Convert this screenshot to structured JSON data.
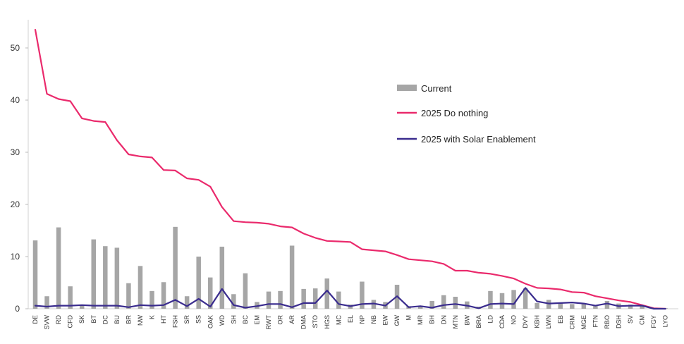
{
  "chart_data": {
    "type": "bar",
    "categories": [
      "DE",
      "SVW",
      "RD",
      "CFD",
      "SK",
      "BT",
      "DC",
      "BU",
      "BR",
      "NW",
      "K",
      "HT",
      "FSH",
      "SR",
      "SS",
      "OAK",
      "WD",
      "SH",
      "BC",
      "EM",
      "RWT",
      "OR",
      "AR",
      "DMA",
      "STO",
      "HGS",
      "MC",
      "EL",
      "NP",
      "NB",
      "EW",
      "GW",
      "M",
      "MR",
      "BH",
      "DN",
      "MTN",
      "BW",
      "BRA",
      "LD",
      "CDA",
      "NO",
      "DVY",
      "KBH",
      "LWN",
      "EB",
      "CRM",
      "MGE",
      "FTN",
      "RBO",
      "DSH",
      "SV",
      "CM",
      "FGY",
      "LYO"
    ],
    "series": [
      {
        "name": "Current",
        "kind": "bar",
        "color": "#a6a6a6",
        "values": [
          13.1,
          2.4,
          15.6,
          4.3,
          0.8,
          13.3,
          12.0,
          11.7,
          4.9,
          8.2,
          3.4,
          5.1,
          15.7,
          2.4,
          10.0,
          6.0,
          11.9,
          2.8,
          6.8,
          1.3,
          3.3,
          3.4,
          12.1,
          3.8,
          3.9,
          5.8,
          3.3,
          0.8,
          5.2,
          1.7,
          1.3,
          4.6,
          0.5,
          0.6,
          1.5,
          2.6,
          2.3,
          1.4,
          0.4,
          3.4,
          3.0,
          3.6,
          3.9,
          1.1,
          1.7,
          1.2,
          0.9,
          0.9,
          0.7,
          1.5,
          1.0,
          0.8,
          0.7,
          0.2,
          0.1
        ]
      },
      {
        "name": "2025 Do nothing",
        "kind": "line",
        "color": "#ea2a6c",
        "values": [
          53.5,
          41.2,
          40.2,
          39.8,
          36.5,
          36.0,
          35.8,
          32.3,
          29.6,
          29.2,
          29.0,
          26.6,
          26.5,
          25.0,
          24.7,
          23.4,
          19.5,
          16.8,
          16.6,
          16.5,
          16.3,
          15.8,
          15.6,
          14.4,
          13.6,
          13.0,
          12.9,
          12.8,
          11.4,
          11.2,
          11.0,
          10.3,
          9.5,
          9.3,
          9.1,
          8.6,
          7.3,
          7.3,
          6.9,
          6.7,
          6.3,
          5.8,
          4.8,
          4.0,
          3.9,
          3.7,
          3.2,
          3.1,
          2.4,
          2.0,
          1.6,
          1.3,
          0.7,
          0.1,
          0.0
        ]
      },
      {
        "name": "2025 with Solar Enablement",
        "kind": "line",
        "color": "#3a2c8e",
        "values": [
          0.6,
          0.4,
          0.6,
          0.6,
          0.7,
          0.6,
          0.6,
          0.6,
          0.3,
          0.7,
          0.6,
          0.7,
          1.7,
          0.5,
          1.9,
          0.4,
          3.8,
          0.7,
          0.2,
          0.5,
          0.9,
          0.9,
          0.3,
          1.1,
          1.1,
          3.5,
          0.9,
          0.5,
          0.9,
          1.0,
          0.6,
          2.4,
          0.3,
          0.5,
          0.2,
          0.7,
          0.9,
          0.6,
          0.1,
          0.9,
          1.0,
          0.9,
          4.0,
          1.4,
          1.0,
          1.1,
          1.2,
          1.0,
          0.6,
          1.0,
          0.5,
          0.6,
          0.6,
          0.0,
          0.0
        ]
      }
    ],
    "ylim": [
      0,
      55
    ],
    "yticks": [
      0,
      10,
      20,
      30,
      40,
      50
    ],
    "grid": false,
    "legend_placement": "right-center"
  }
}
